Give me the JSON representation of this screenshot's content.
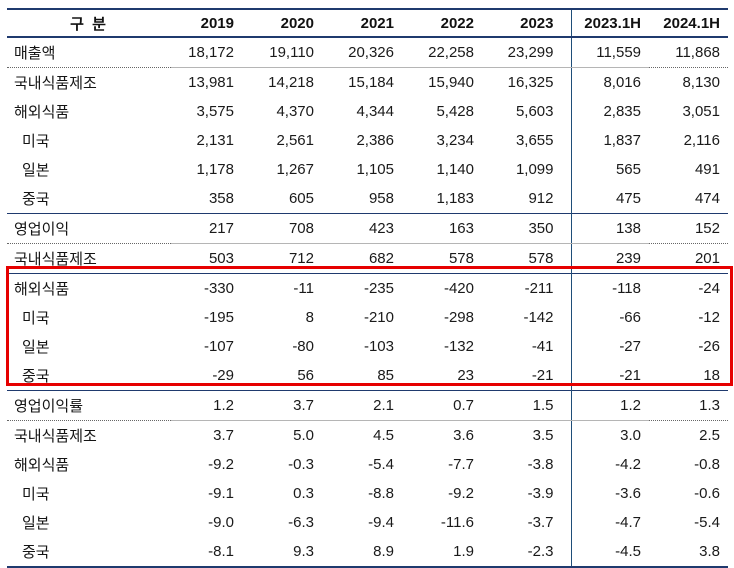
{
  "colors": {
    "table_line": "#1f3a6e",
    "vertical_divider": "#1f4e79",
    "dotted_separator": "#666666",
    "highlight_border": "#e60000",
    "text": "#1a1a1a",
    "background": "#ffffff"
  },
  "table": {
    "columns": [
      {
        "id": "label",
        "label": "구 분"
      },
      {
        "id": "2019",
        "label": "2019"
      },
      {
        "id": "2020",
        "label": "2020"
      },
      {
        "id": "2021",
        "label": "2021"
      },
      {
        "id": "2022",
        "label": "2022"
      },
      {
        "id": "2023",
        "label": "2023"
      },
      {
        "id": "2023-1h",
        "label": "2023.1H"
      },
      {
        "id": "2024-1h",
        "label": "2024.1H"
      }
    ],
    "rows": [
      {
        "label": "매출액",
        "indent": false,
        "separator_below": "dotted",
        "highlighted": false,
        "values": [
          "18,172",
          "19,110",
          "20,326",
          "22,258",
          "23,299",
          "11,559",
          "11,868"
        ]
      },
      {
        "label": "국내식품제조",
        "indent": false,
        "highlighted": false,
        "values": [
          "13,981",
          "14,218",
          "15,184",
          "15,940",
          "16,325",
          "8,016",
          "8,130"
        ]
      },
      {
        "label": "해외식품",
        "indent": false,
        "highlighted": false,
        "values": [
          "3,575",
          "4,370",
          "4,344",
          "5,428",
          "5,603",
          "2,835",
          "3,051"
        ]
      },
      {
        "label": "미국",
        "indent": true,
        "highlighted": false,
        "values": [
          "2,131",
          "2,561",
          "2,386",
          "3,234",
          "3,655",
          "1,837",
          "2,116"
        ]
      },
      {
        "label": "일본",
        "indent": true,
        "highlighted": false,
        "values": [
          "1,178",
          "1,267",
          "1,105",
          "1,140",
          "1,099",
          "565",
          "491"
        ]
      },
      {
        "label": "중국",
        "indent": true,
        "highlighted": false,
        "values": [
          "358",
          "605",
          "958",
          "1,183",
          "912",
          "475",
          "474"
        ]
      },
      {
        "label": "영업이익",
        "indent": false,
        "separator_above": "solid",
        "separator_below": "dotted",
        "highlighted": false,
        "values": [
          "217",
          "708",
          "423",
          "163",
          "350",
          "138",
          "152"
        ]
      },
      {
        "label": "국내식품제조",
        "indent": false,
        "highlighted": false,
        "values": [
          "503",
          "712",
          "682",
          "578",
          "578",
          "239",
          "201"
        ]
      },
      {
        "label": "해외식품",
        "indent": false,
        "separator_above": "solid",
        "highlighted": true,
        "values": [
          "-330",
          "-11",
          "-235",
          "-420",
          "-211",
          "-118",
          "-24"
        ]
      },
      {
        "label": "미국",
        "indent": true,
        "highlighted": true,
        "values": [
          "-195",
          "8",
          "-210",
          "-298",
          "-142",
          "-66",
          "-12"
        ]
      },
      {
        "label": "일본",
        "indent": true,
        "highlighted": true,
        "values": [
          "-107",
          "-80",
          "-103",
          "-132",
          "-41",
          "-27",
          "-26"
        ]
      },
      {
        "label": "중국",
        "indent": true,
        "highlighted": true,
        "values": [
          "-29",
          "56",
          "85",
          "23",
          "-21",
          "-21",
          "18"
        ]
      },
      {
        "label": "영업이익률",
        "indent": false,
        "separator_above": "solid",
        "separator_below": "dotted",
        "highlighted": false,
        "values": [
          "1.2",
          "3.7",
          "2.1",
          "0.7",
          "1.5",
          "1.2",
          "1.3"
        ]
      },
      {
        "label": "국내식품제조",
        "indent": false,
        "highlighted": false,
        "values": [
          "3.7",
          "5.0",
          "4.5",
          "3.6",
          "3.5",
          "3.0",
          "2.5"
        ]
      },
      {
        "label": "해외식품",
        "indent": false,
        "highlighted": false,
        "values": [
          "-9.2",
          "-0.3",
          "-5.4",
          "-7.7",
          "-3.8",
          "-4.2",
          "-0.8"
        ]
      },
      {
        "label": "미국",
        "indent": true,
        "highlighted": false,
        "values": [
          "-9.1",
          "0.3",
          "-8.8",
          "-9.2",
          "-3.9",
          "-3.6",
          "-0.6"
        ]
      },
      {
        "label": "일본",
        "indent": true,
        "highlighted": false,
        "values": [
          "-9.0",
          "-6.3",
          "-9.4",
          "-11.6",
          "-3.7",
          "-4.7",
          "-5.4"
        ]
      },
      {
        "label": "중국",
        "indent": true,
        "highlighted": false,
        "values": [
          "-8.1",
          "9.3",
          "8.9",
          "1.9",
          "-2.3",
          "-4.5",
          "3.8"
        ]
      }
    ]
  },
  "highlight_box": {
    "color": "#e60000",
    "covers_rows": [
      "해외식품",
      "미국",
      "일본",
      "중국"
    ]
  }
}
